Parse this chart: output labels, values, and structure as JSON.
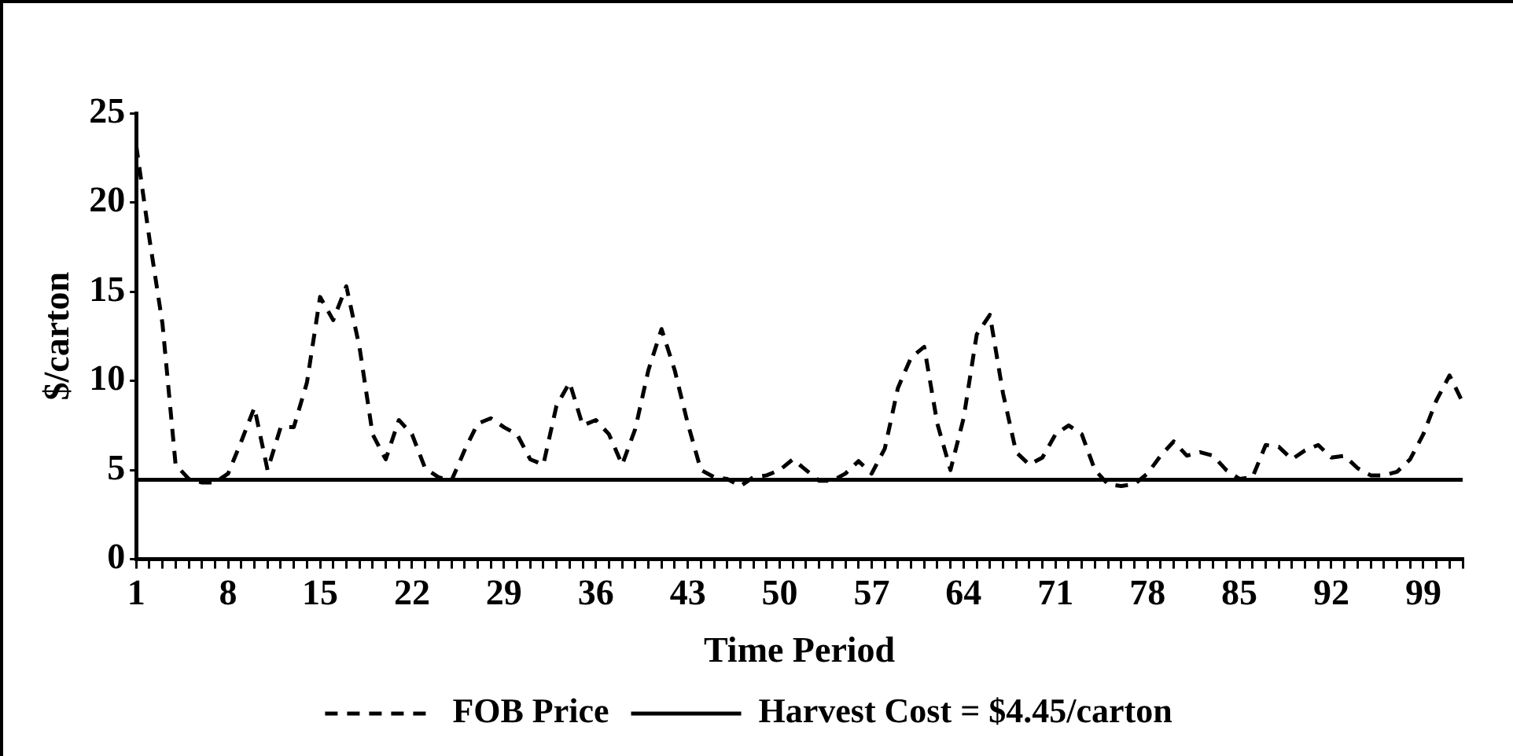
{
  "chart_data": {
    "type": "line",
    "xlabel": "Time Period",
    "ylabel": "$/carton",
    "xlim": [
      1,
      102
    ],
    "ylim": [
      0,
      25
    ],
    "yticks": [
      0,
      5,
      10,
      15,
      20,
      25
    ],
    "xticks": [
      1,
      {
        "value": 2,
        "label": null
      },
      {
        "value": 3,
        "label": null
      },
      {
        "value": 4,
        "label": null
      },
      {
        "value": 5,
        "label": null
      },
      {
        "value": 6,
        "label": null
      },
      {
        "value": 7,
        "label": null
      },
      8,
      {
        "value": 9,
        "label": null
      },
      {
        "value": 10,
        "label": null
      },
      {
        "value": 11,
        "label": null
      },
      {
        "value": 12,
        "label": null
      },
      {
        "value": 13,
        "label": null
      },
      {
        "value": 14,
        "label": null
      },
      15,
      {
        "value": 16,
        "label": null
      },
      {
        "value": 17,
        "label": null
      },
      {
        "value": 18,
        "label": null
      },
      {
        "value": 19,
        "label": null
      },
      {
        "value": 20,
        "label": null
      },
      {
        "value": 21,
        "label": null
      },
      22,
      {
        "value": 23,
        "label": null
      },
      {
        "value": 24,
        "label": null
      },
      {
        "value": 25,
        "label": null
      },
      {
        "value": 26,
        "label": null
      },
      {
        "value": 27,
        "label": null
      },
      {
        "value": 28,
        "label": null
      },
      29,
      {
        "value": 30,
        "label": null
      },
      {
        "value": 31,
        "label": null
      },
      {
        "value": 32,
        "label": null
      },
      {
        "value": 33,
        "label": null
      },
      {
        "value": 34,
        "label": null
      },
      {
        "value": 35,
        "label": null
      },
      36,
      {
        "value": 37,
        "label": null
      },
      {
        "value": 38,
        "label": null
      },
      {
        "value": 39,
        "label": null
      },
      {
        "value": 40,
        "label": null
      },
      {
        "value": 41,
        "label": null
      },
      {
        "value": 42,
        "label": null
      },
      43,
      {
        "value": 44,
        "label": null
      },
      {
        "value": 45,
        "label": null
      },
      {
        "value": 46,
        "label": null
      },
      {
        "value": 47,
        "label": null
      },
      {
        "value": 48,
        "label": null
      },
      {
        "value": 49,
        "label": null
      },
      50,
      {
        "value": 51,
        "label": null
      },
      {
        "value": 52,
        "label": null
      },
      {
        "value": 53,
        "label": null
      },
      {
        "value": 54,
        "label": null
      },
      {
        "value": 55,
        "label": null
      },
      {
        "value": 56,
        "label": null
      },
      57,
      {
        "value": 58,
        "label": null
      },
      {
        "value": 59,
        "label": null
      },
      {
        "value": 60,
        "label": null
      },
      {
        "value": 61,
        "label": null
      },
      {
        "value": 62,
        "label": null
      },
      {
        "value": 63,
        "label": null
      },
      64,
      {
        "value": 65,
        "label": null
      },
      {
        "value": 66,
        "label": null
      },
      {
        "value": 67,
        "label": null
      },
      {
        "value": 68,
        "label": null
      },
      {
        "value": 69,
        "label": null
      },
      {
        "value": 70,
        "label": null
      },
      71,
      {
        "value": 72,
        "label": null
      },
      {
        "value": 73,
        "label": null
      },
      {
        "value": 74,
        "label": null
      },
      {
        "value": 75,
        "label": null
      },
      {
        "value": 76,
        "label": null
      },
      {
        "value": 77,
        "label": null
      },
      78,
      {
        "value": 79,
        "label": null
      },
      {
        "value": 80,
        "label": null
      },
      {
        "value": 81,
        "label": null
      },
      {
        "value": 82,
        "label": null
      },
      {
        "value": 83,
        "label": null
      },
      {
        "value": 84,
        "label": null
      },
      85,
      {
        "value": 86,
        "label": null
      },
      {
        "value": 87,
        "label": null
      },
      {
        "value": 88,
        "label": null
      },
      {
        "value": 89,
        "label": null
      },
      {
        "value": 90,
        "label": null
      },
      {
        "value": 91,
        "label": null
      },
      92,
      {
        "value": 93,
        "label": null
      },
      {
        "value": 94,
        "label": null
      },
      {
        "value": 95,
        "label": null
      },
      {
        "value": 96,
        "label": null
      },
      {
        "value": 97,
        "label": null
      },
      {
        "value": 98,
        "label": null
      },
      99,
      {
        "value": 100,
        "label": null
      },
      {
        "value": 101,
        "label": null
      },
      {
        "value": 102,
        "label": null
      }
    ],
    "x": [
      1,
      2,
      3,
      4,
      5,
      6,
      7,
      8,
      9,
      10,
      11,
      12,
      13,
      14,
      15,
      16,
      17,
      18,
      19,
      20,
      21,
      22,
      23,
      24,
      25,
      26,
      27,
      28,
      29,
      30,
      31,
      32,
      33,
      34,
      35,
      36,
      37,
      38,
      39,
      40,
      41,
      42,
      43,
      44,
      45,
      46,
      47,
      48,
      49,
      50,
      51,
      52,
      53,
      54,
      55,
      56,
      57,
      58,
      59,
      60,
      61,
      62,
      63,
      64,
      65,
      66,
      67,
      68,
      69,
      70,
      71,
      72,
      73,
      74,
      75,
      76,
      77,
      78,
      79,
      80,
      81,
      82,
      83,
      84,
      85,
      86,
      87,
      88,
      89,
      90,
      91,
      92,
      93,
      94,
      95,
      96,
      97,
      98,
      99,
      100,
      101,
      102
    ],
    "series": [
      {
        "name": "FOB Price",
        "color": "#000000",
        "line_style": "dashed",
        "values": [
          23.2,
          18,
          13.2,
          5.3,
          4.5,
          4.3,
          4.3,
          4.8,
          6.6,
          8.5,
          5.0,
          7.4,
          7.4,
          9.9,
          14.7,
          13.4,
          15.3,
          11.9,
          7.0,
          5.6,
          7.8,
          7.0,
          5.1,
          4.6,
          4.4,
          6.1,
          7.6,
          7.9,
          7.4,
          7.0,
          5.6,
          5.3,
          8.6,
          9.9,
          7.5,
          7.8,
          7.0,
          5.3,
          7.3,
          10.6,
          12.9,
          10.6,
          7.6,
          5.0,
          4.6,
          4.5,
          4.1,
          4.6,
          4.7,
          5.0,
          5.6,
          5.0,
          4.4,
          4.4,
          4.8,
          5.5,
          4.8,
          6.2,
          9.6,
          11.3,
          11.9,
          7.6,
          5.0,
          7.9,
          12.6,
          13.7,
          9.3,
          6.0,
          5.3,
          5.7,
          7.0,
          7.5,
          7.0,
          5.0,
          4.2,
          4.1,
          4.2,
          4.8,
          5.8,
          6.6,
          5.8,
          6.0,
          5.8,
          5.0,
          4.5,
          4.6,
          6.4,
          6.3,
          5.6,
          6.1,
          6.4,
          5.7,
          5.8,
          5.1,
          4.7,
          4.7,
          4.9,
          5.6,
          7.0,
          8.9,
          10.3,
          8.8
        ]
      },
      {
        "name": "Harvest Cost = $4.45/carton",
        "color": "#000000",
        "line_style": "solid",
        "x": [
          1,
          102
        ],
        "values": [
          4.45,
          4.45
        ]
      }
    ],
    "grid": false,
    "marker": "none",
    "legend": "bottom"
  }
}
